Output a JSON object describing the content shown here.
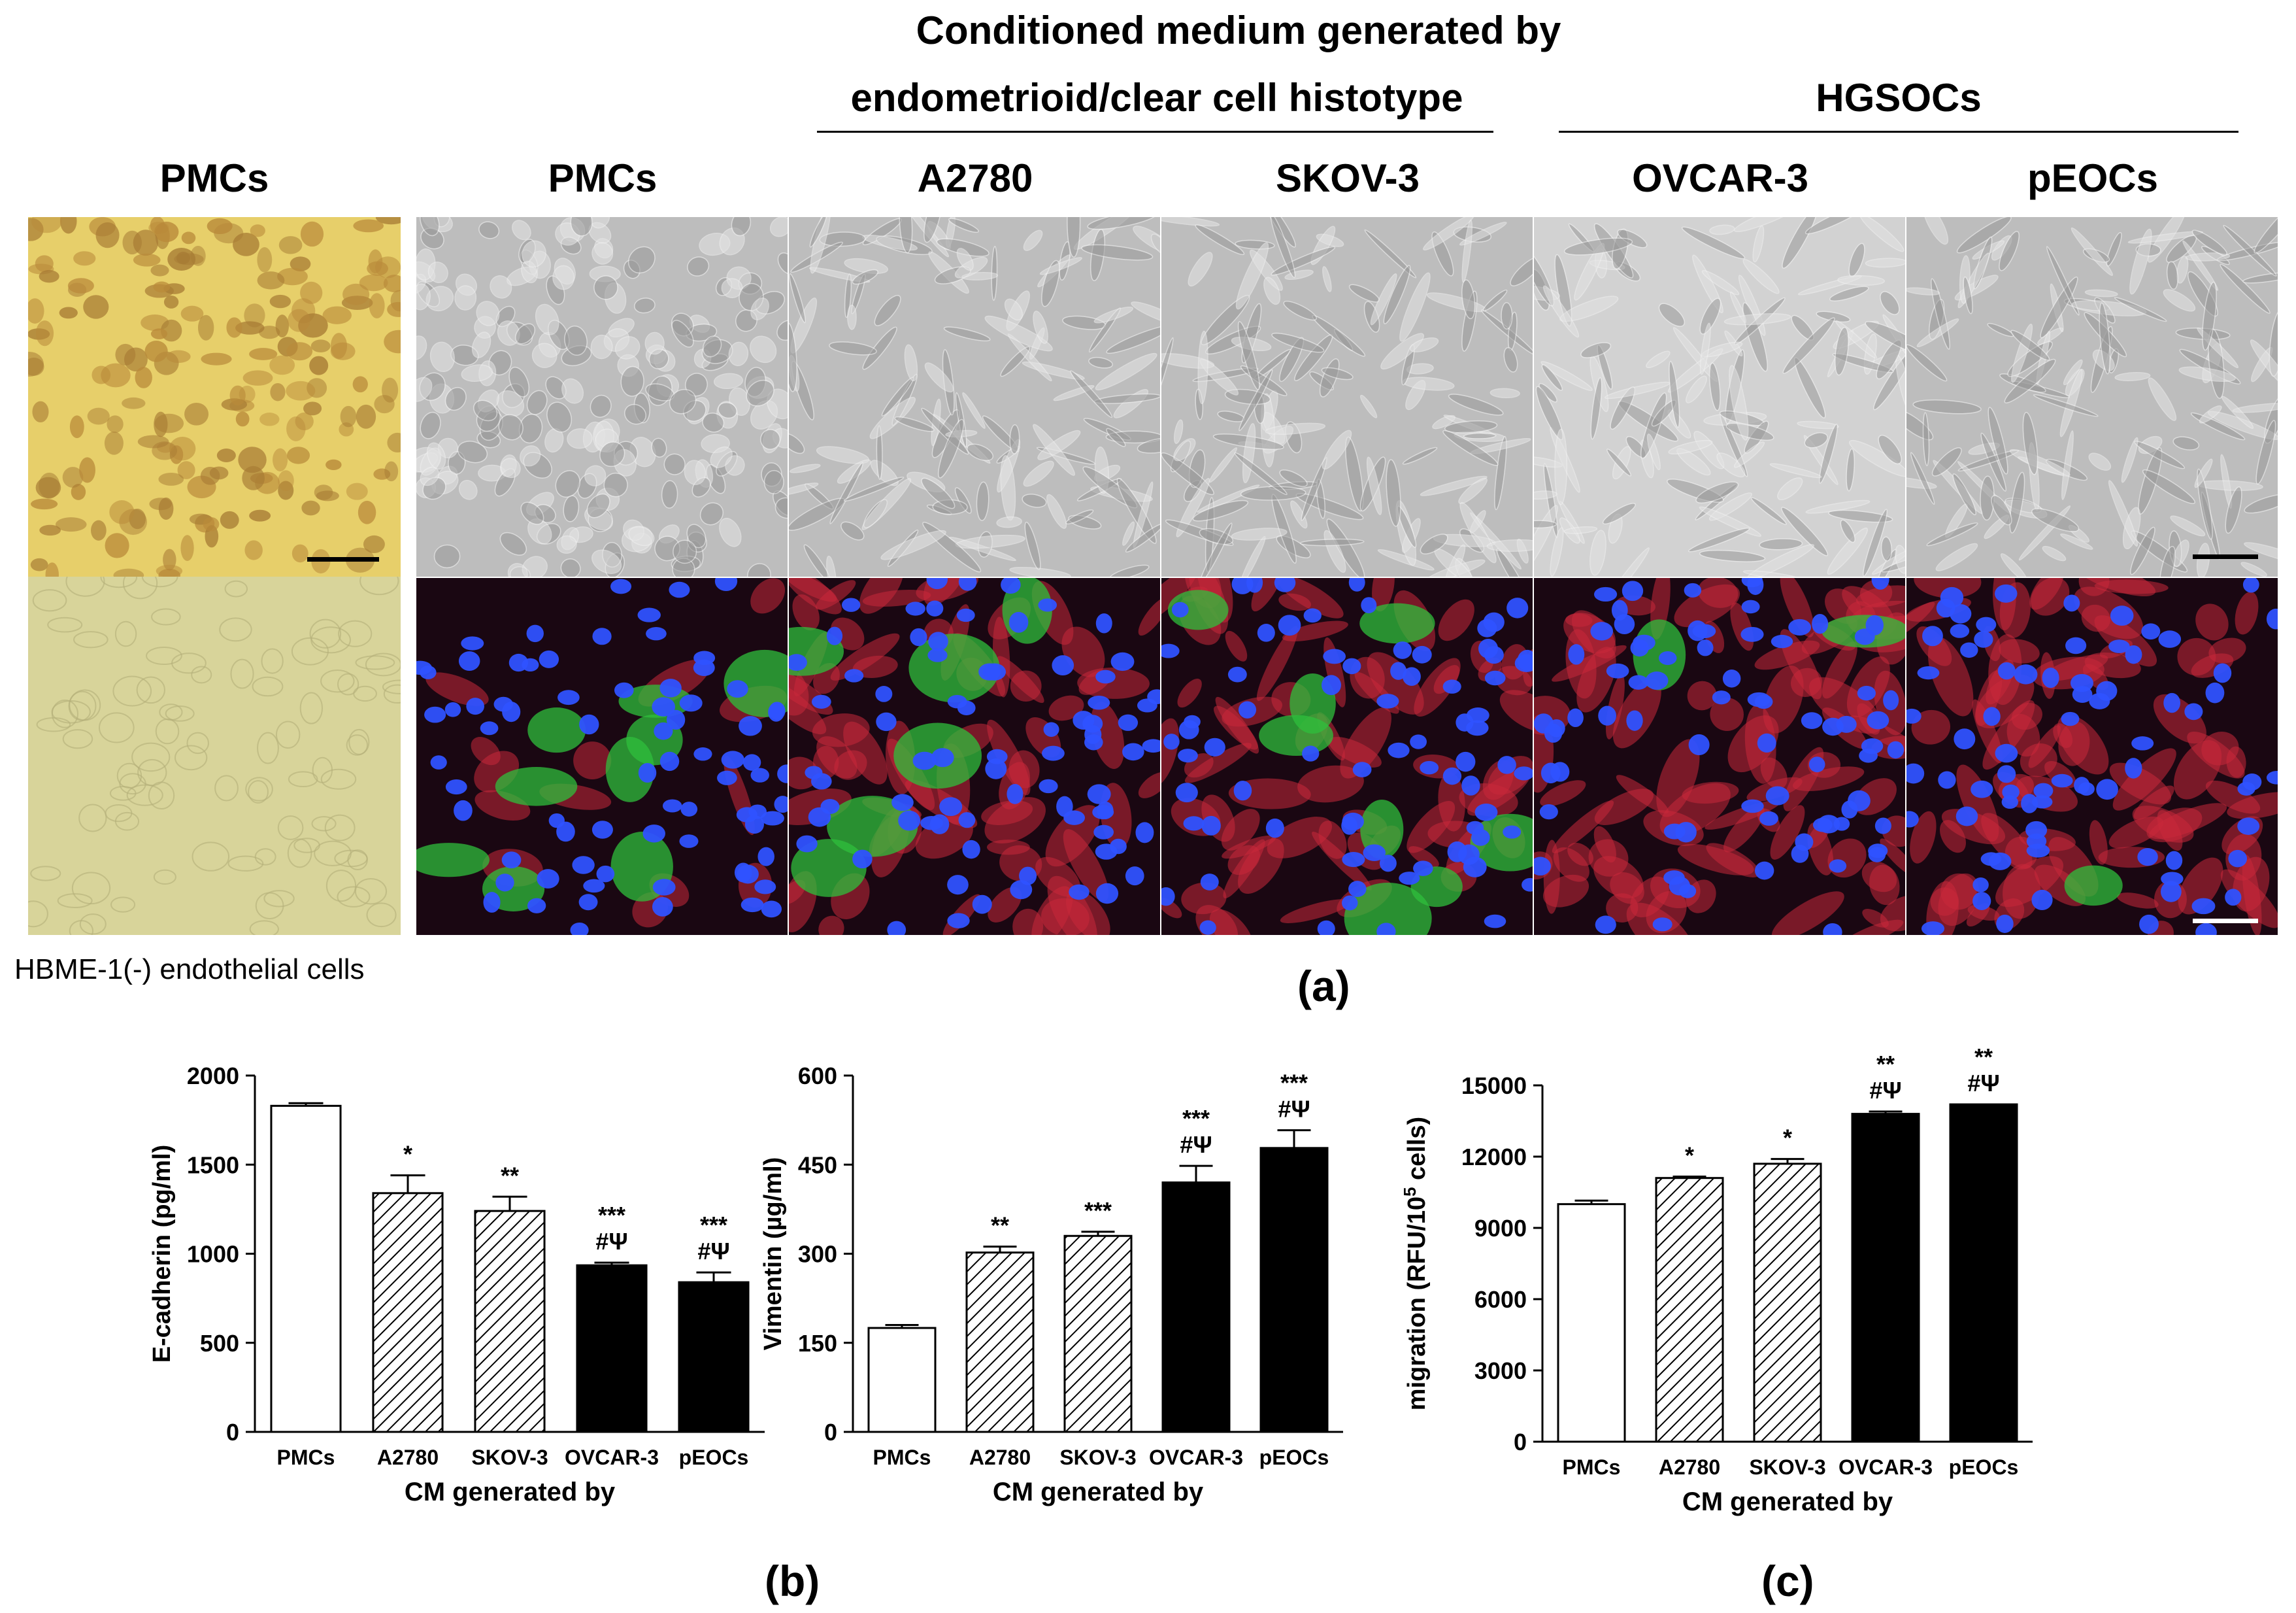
{
  "headers": {
    "top_title": "Conditioned medium generated by",
    "group_endo": "endometrioid/clear cell histotype",
    "group_hgsoc": "HGSOCs",
    "col_pmc_left": "PMCs",
    "col_pmc": "PMCs",
    "col_a2780": "A2780",
    "col_skov3": "SKOV-3",
    "col_ovcar3": "OVCAR-3",
    "col_peocs": "pEOCs"
  },
  "captions": {
    "hbme": "HBME-1(-) endothelial cells",
    "panel_a": "(a)",
    "panel_b": "(b)",
    "panel_c": "(c)"
  },
  "colors": {
    "immuno_brown": "#e7cf6a",
    "negative_ctrl": "#d8d49a",
    "phase_gray": "#bdbdbd",
    "fluor_bg": "#1a0712",
    "nuclei": "#2f52ff",
    "green": "#2fbf3c",
    "red": "#c8283a"
  },
  "chart_data": [
    {
      "type": "bar",
      "ylabel": "E-cadherin (pg/ml)",
      "xlabel": "CM generated by",
      "categories": [
        "PMCs",
        "A2780",
        "SKOV-3",
        "OVCAR-3",
        "pEOCs"
      ],
      "values": [
        1830,
        1340,
        1240,
        935,
        840
      ],
      "errors": [
        15,
        100,
        80,
        15,
        55
      ],
      "fills": [
        "white",
        "hatch",
        "hatch",
        "black",
        "black"
      ],
      "annotations": [
        [],
        [
          "*"
        ],
        [
          "**"
        ],
        [
          "***",
          "#Ψ"
        ],
        [
          "***",
          "#Ψ"
        ]
      ],
      "ylim": [
        0,
        2000
      ],
      "yticks": [
        "0",
        "500",
        "1000",
        "1500",
        "2000"
      ]
    },
    {
      "type": "bar",
      "ylabel": "Vimentin (µg/ml)",
      "xlabel": "CM generated by",
      "categories": [
        "PMCs",
        "A2780",
        "SKOV-3",
        "OVCAR-3",
        "pEOCs"
      ],
      "values": [
        175,
        302,
        330,
        420,
        478
      ],
      "errors": [
        5,
        10,
        7,
        28,
        30
      ],
      "fills": [
        "white",
        "hatch",
        "hatch",
        "black",
        "black"
      ],
      "annotations": [
        [],
        [
          "**"
        ],
        [
          "***"
        ],
        [
          "***",
          "#Ψ"
        ],
        [
          "***",
          "#Ψ"
        ]
      ],
      "ylim": [
        0,
        600
      ],
      "yticks": [
        "0",
        "150",
        "300",
        "450",
        "600"
      ]
    },
    {
      "type": "bar",
      "ylabel": "migration (RFU/10",
      "ylabel_sup": "5",
      "ylabel_end": " cells)",
      "xlabel": "CM generated by",
      "categories": [
        "PMCs",
        "A2780",
        "SKOV-3",
        "OVCAR-3",
        "pEOCs"
      ],
      "values": [
        10000,
        11100,
        11700,
        13800,
        14200
      ],
      "errors": [
        150,
        60,
        200,
        100,
        0
      ],
      "fills": [
        "white",
        "hatch",
        "hatch",
        "black",
        "black"
      ],
      "annotations": [
        [],
        [
          "*"
        ],
        [
          "*"
        ],
        [
          "**",
          "#Ψ"
        ],
        [
          "**",
          "#Ψ"
        ]
      ],
      "ylim": [
        0,
        15000
      ],
      "yticks": [
        "0",
        "3000",
        "6000",
        "9000",
        "12000",
        "15000"
      ]
    }
  ]
}
